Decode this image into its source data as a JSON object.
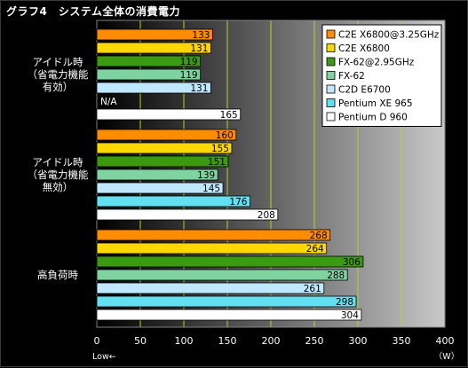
{
  "title": "グラフ4　システム全体の消費電力",
  "chart_data": {
    "type": "bar",
    "orientation": "horizontal",
    "title": "グラフ4　システム全体の消費電力",
    "categories": [
      [
        "アイドル時",
        "（省電力機能",
        "有効）"
      ],
      [
        "アイドル時",
        "（省電力機能",
        "無効）"
      ],
      [
        "高負荷時"
      ]
    ],
    "series": [
      {
        "name": "C2E X6800@3.25GHz",
        "color": "#ff8c00",
        "values": [
          133,
          160,
          268
        ]
      },
      {
        "name": "C2E X6800",
        "color": "#ffd700",
        "values": [
          131,
          155,
          264
        ]
      },
      {
        "name": "FX-62@2.95GHz",
        "color": "#3a9a10",
        "values": [
          119,
          151,
          306
        ]
      },
      {
        "name": "FX-62",
        "color": "#7fd3a0",
        "values": [
          119,
          139,
          288
        ]
      },
      {
        "name": "C2D E6700",
        "color": "#bfe8ff",
        "values": [
          131,
          145,
          261
        ]
      },
      {
        "name": "Pentium XE 965",
        "color": "#60e0f0",
        "values": [
          null,
          176,
          298
        ]
      },
      {
        "name": "Pentium D 960",
        "color": "#ffffff",
        "values": [
          165,
          208,
          304
        ]
      }
    ],
    "na_label": "N/A",
    "xlim": [
      0,
      400
    ],
    "xticks": [
      0,
      50,
      100,
      150,
      200,
      250,
      300,
      350,
      400
    ],
    "xunit": "（W）",
    "direction_note": "Low←",
    "grid": true,
    "legend_position": "top-right"
  }
}
